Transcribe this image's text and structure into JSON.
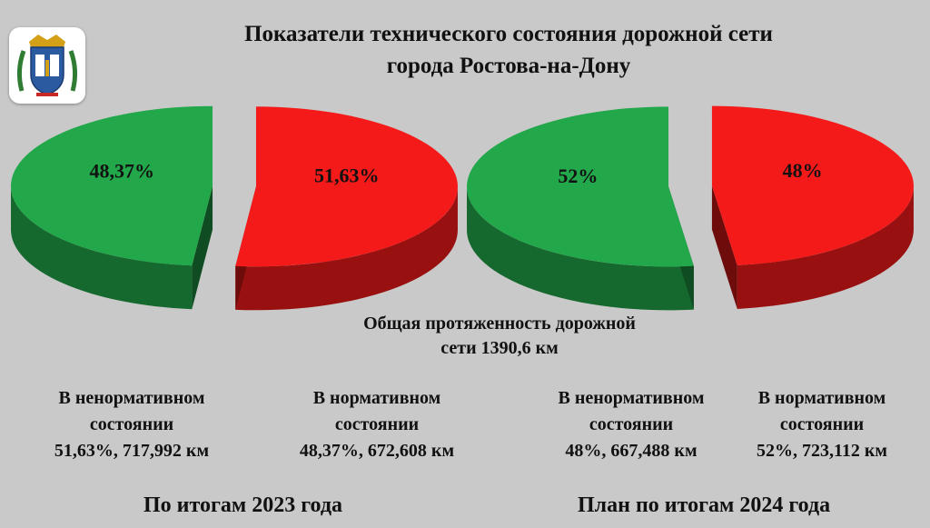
{
  "title_line1": "Показатели технического состояния дорожной сети",
  "title_line2": "города Ростова-на-Дону",
  "total_line1": "Общая протяженность дорожной",
  "total_line2": "сети 1390,6 км",
  "colors": {
    "red": "#f51a1a",
    "green": "#22a84a"
  },
  "chart_data": [
    {
      "type": "pie",
      "title": "По итогам 2023 года",
      "slices": [
        {
          "label": "В ненормативном состоянии",
          "value": 51.63,
          "display": "51,63%",
          "length_text": "51,63%, 717,992 км",
          "color": "#f51a1a"
        },
        {
          "label": "В нормативном состоянии",
          "value": 48.37,
          "display": "48,37%",
          "length_text": "48,37%, 672,608 км",
          "color": "#22a84a"
        }
      ]
    },
    {
      "type": "pie",
      "title": "План по итогам 2024 года",
      "slices": [
        {
          "label": "В ненормативном состоянии",
          "value": 48,
          "display": "48%",
          "length_text": "48%, 667,488 км",
          "color": "#f51a1a"
        },
        {
          "label": "В нормативном состоянии",
          "value": 52,
          "display": "52%",
          "length_text": "52%, 723,112 км",
          "color": "#22a84a"
        }
      ]
    }
  ],
  "legend": [
    {
      "line1": "В ненормативном",
      "line2": "состоянии",
      "line3": "51,63%, 717,992 км"
    },
    {
      "line1": "В нормативном",
      "line2": "состоянии",
      "line3": "48,37%, 672,608 км"
    },
    {
      "line1": "В ненормативном",
      "line2": "состоянии",
      "line3": "48%, 667,488 км"
    },
    {
      "line1": "В нормативном",
      "line2": "состоянии",
      "line3": "52%, 723,112 км"
    }
  ],
  "period_2023": "По итогам 2023 года",
  "period_2024": "План по итогам 2024 года"
}
